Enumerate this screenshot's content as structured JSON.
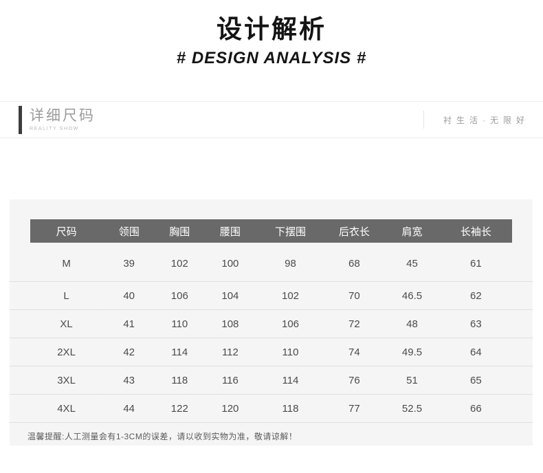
{
  "page_header": {
    "title": "设计解析",
    "subtitle": "# DESIGN ANALYSIS #"
  },
  "section_bar": {
    "title": "详细尺码",
    "subtitle": "REALITY SHOW",
    "tagline": "衬生活·无限好"
  },
  "size_chart": {
    "columns": [
      "尺码",
      "领围",
      "胸围",
      "腰围",
      "下摆围",
      "后衣长",
      "肩宽",
      "长袖长"
    ],
    "rows": [
      [
        "M",
        "39",
        "102",
        "100",
        "98",
        "68",
        "45",
        "61"
      ],
      [
        "L",
        "40",
        "106",
        "104",
        "102",
        "70",
        "46.5",
        "62"
      ],
      [
        "XL",
        "41",
        "110",
        "108",
        "106",
        "72",
        "48",
        "63"
      ],
      [
        "2XL",
        "42",
        "114",
        "112",
        "110",
        "74",
        "49.5",
        "64"
      ],
      [
        "3XL",
        "43",
        "118",
        "116",
        "114",
        "76",
        "51",
        "65"
      ],
      [
        "4XL",
        "44",
        "122",
        "120",
        "118",
        "77",
        "52.5",
        "66"
      ]
    ],
    "note": "温馨提醒:人工测量会有1-3CM的误差，请以收到实物为准，敬请谅解！"
  },
  "colors": {
    "table_header_bg": "#696969",
    "panel_bg": "#f5f5f5",
    "accent_bar": "#3c3c3c"
  }
}
